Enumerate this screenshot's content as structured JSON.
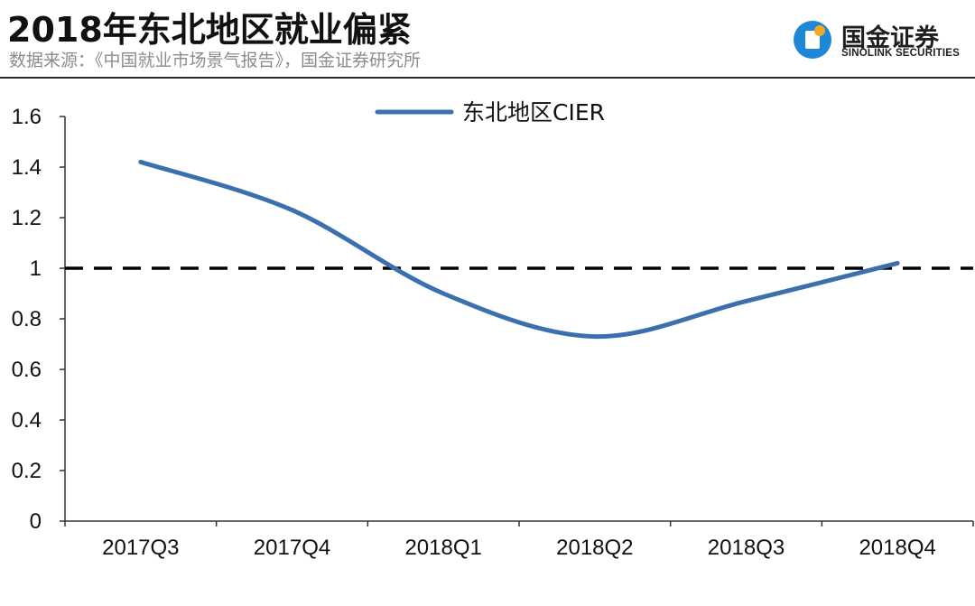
{
  "header": {
    "title": "2018年东北地区就业偏紧",
    "source": "数据来源：《中国就业市场景气报告》，国金证券研究所"
  },
  "logo": {
    "name_cn": "国金证券",
    "name_en": "SINOLINK SECURITIES",
    "brand_color": "#1e88d6",
    "accent_color": "#f5a623"
  },
  "chart_data": {
    "type": "line",
    "title": "",
    "xlabel": "",
    "ylabel": "",
    "categories": [
      "2017Q3",
      "2017Q4",
      "2018Q1",
      "2018Q2",
      "2018Q3",
      "2018Q4"
    ],
    "series": [
      {
        "name": "东北地区CIER",
        "values": [
          1.42,
          1.23,
          0.9,
          0.73,
          0.87,
          1.02
        ],
        "color": "#3b6fae",
        "smooth": true
      }
    ],
    "reference_line": {
      "value": 1,
      "style": "dashed",
      "color": "#000000"
    },
    "ylim": [
      0,
      1.6
    ],
    "yticks": [
      0,
      0.2,
      0.4,
      0.6,
      0.8,
      1,
      1.2,
      1.4,
      1.6
    ],
    "ytick_labels": [
      "0",
      "0.2",
      "0.4",
      "0.6",
      "0.8",
      "1",
      "1.2",
      "1.4",
      "1.6"
    ],
    "grid": false,
    "legend_position": "top-center"
  }
}
